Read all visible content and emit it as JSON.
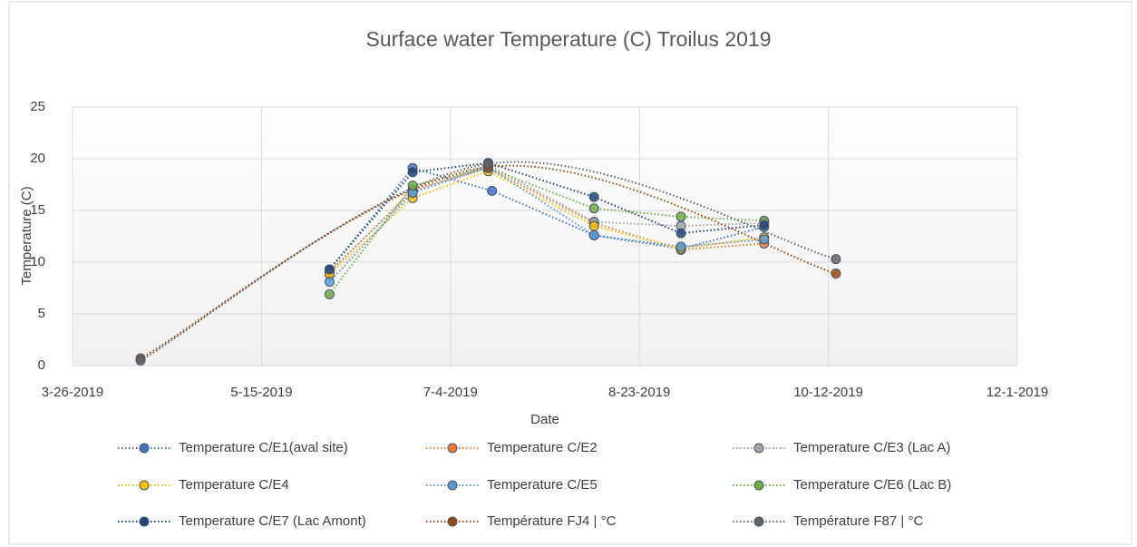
{
  "chart_data": {
    "type": "scatter",
    "title": "Surface water Temperature (C) Troilus 2019",
    "x_label": "Date",
    "y_label": "Temperature (C)",
    "xlim": [
      "2019-03-26",
      "2019-12-01"
    ],
    "xticks": [
      {
        "value": "2019-03-26",
        "label": "3-26-2019"
      },
      {
        "value": "2019-05-15",
        "label": "5-15-2019"
      },
      {
        "value": "2019-07-04",
        "label": "7-4-2019"
      },
      {
        "value": "2019-08-23",
        "label": "8-23-2019"
      },
      {
        "value": "2019-10-12",
        "label": "10-12-2019"
      },
      {
        "value": "2019-12-01",
        "label": "12-1-2019"
      }
    ],
    "ylim": [
      0,
      25
    ],
    "yticks": [
      0,
      5,
      10,
      15,
      20,
      25
    ],
    "grid": true,
    "legend": "bottom",
    "series": [
      {
        "name": "Temperature C/E1(aval site)",
        "color": "#4472c4",
        "x": [
          "2019-06-02",
          "2019-06-24",
          "2019-07-15",
          "2019-08-11",
          "2019-09-03",
          "2019-09-25"
        ],
        "values": [
          9.3,
          19.1,
          16.9,
          12.6,
          11.3,
          13.4
        ]
      },
      {
        "name": "Temperature C/E2",
        "color": "#ed7d31",
        "x": [
          "2019-06-02",
          "2019-06-24",
          "2019-07-14",
          "2019-08-11",
          "2019-09-03",
          "2019-09-25"
        ],
        "values": [
          9.0,
          17.0,
          19.1,
          13.8,
          11.2,
          11.8
        ]
      },
      {
        "name": "Temperature C/E3 (Lac A)",
        "color": "#a5a5a5",
        "x": [
          "2019-06-02",
          "2019-06-24",
          "2019-07-14",
          "2019-08-11",
          "2019-09-03",
          "2019-09-25"
        ],
        "values": [
          9.1,
          16.8,
          19.4,
          13.9,
          13.5,
          13.8
        ]
      },
      {
        "name": "Temperature C/E4",
        "color": "#ffc000",
        "x": [
          "2019-06-02",
          "2019-06-24",
          "2019-07-14",
          "2019-08-11",
          "2019-09-03",
          "2019-09-25"
        ],
        "values": [
          8.8,
          16.2,
          18.8,
          13.5,
          11.3,
          12.4
        ]
      },
      {
        "name": "Temperature C/E5",
        "color": "#5b9bd5",
        "x": [
          "2019-06-02",
          "2019-06-24",
          "2019-07-14",
          "2019-08-11",
          "2019-09-03",
          "2019-09-25"
        ],
        "values": [
          8.1,
          16.7,
          19.2,
          12.6,
          11.5,
          12.2
        ]
      },
      {
        "name": "Temperature C/E6 (Lac B)",
        "color": "#70ad47",
        "x": [
          "2019-06-02",
          "2019-06-24",
          "2019-07-14",
          "2019-08-11",
          "2019-09-03",
          "2019-09-25"
        ],
        "values": [
          6.9,
          17.4,
          19.1,
          15.2,
          14.4,
          14.0
        ]
      },
      {
        "name": "Temperature C/E7 (Lac Amont)",
        "color": "#264478",
        "x": [
          "2019-06-02",
          "2019-06-24",
          "2019-07-14",
          "2019-08-11",
          "2019-09-03",
          "2019-09-25"
        ],
        "values": [
          9.3,
          18.7,
          19.6,
          16.3,
          12.8,
          13.6
        ]
      },
      {
        "name": "Température FJ4  |  °C",
        "color": "#9e480e",
        "smooth": true,
        "x": [
          "2019-04-13",
          "2019-07-14",
          "2019-10-14"
        ],
        "values": [
          0.7,
          19.2,
          8.9
        ]
      },
      {
        "name": "Température F87  |  °C",
        "color": "#636363",
        "smooth": true,
        "x": [
          "2019-04-13",
          "2019-07-14",
          "2019-10-14"
        ],
        "values": [
          0.5,
          19.5,
          10.3
        ]
      }
    ]
  }
}
